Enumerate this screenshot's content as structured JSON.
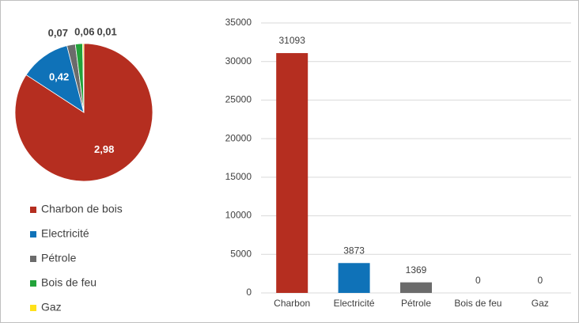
{
  "chart_data": [
    {
      "type": "pie",
      "categories": [
        "Charbon de bois",
        "Electricité",
        "Pétrole",
        "Bois de feu",
        "Gaz"
      ],
      "values": [
        2.98,
        0.42,
        0.07,
        0.06,
        0.01
      ],
      "value_labels": [
        "2,98",
        "0,42",
        "0,07",
        "0,06",
        "0,01"
      ],
      "colors": [
        "#b52e20",
        "#0f72b8",
        "#6b6b6b",
        "#22a33a",
        "#ffe11a"
      ],
      "legend": "bottom"
    },
    {
      "type": "bar",
      "categories": [
        "Charbon",
        "Electricité",
        "Pétrole",
        "Bois de feu",
        "Gaz"
      ],
      "values": [
        31093,
        3873,
        1369,
        0,
        0
      ],
      "colors": [
        "#b52e20",
        "#0f72b8",
        "#6b6b6b",
        "#22a33a",
        "#ffe11a"
      ],
      "ylim": [
        0,
        35000
      ],
      "yticks": [
        0,
        5000,
        10000,
        15000,
        20000,
        25000,
        30000,
        35000
      ],
      "grid": true
    }
  ]
}
